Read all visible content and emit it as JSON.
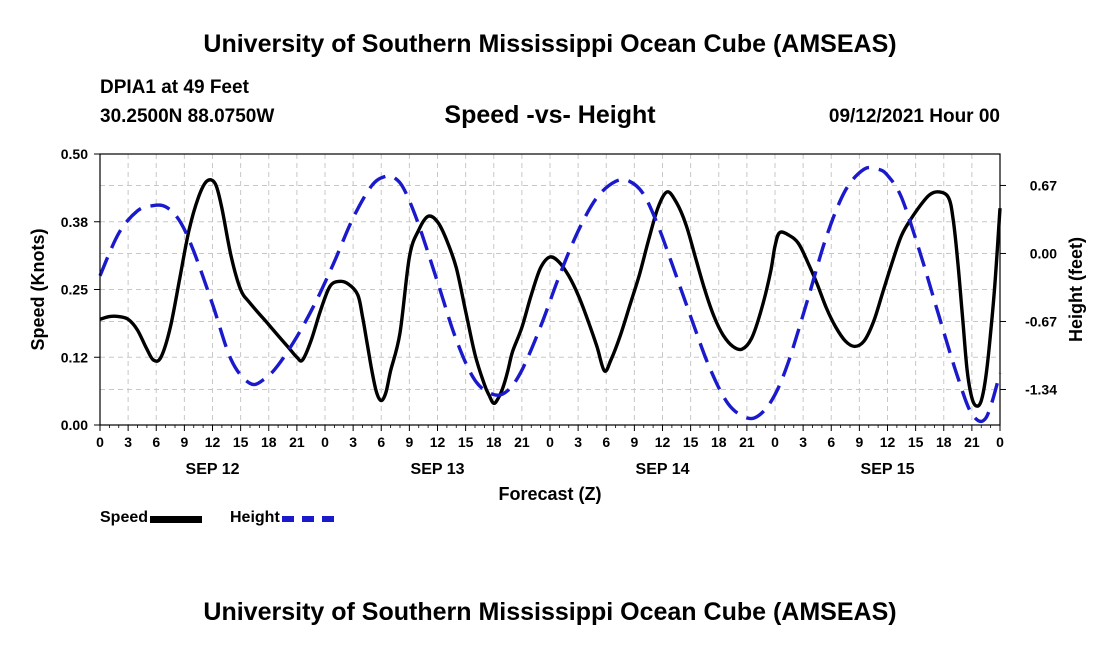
{
  "header": {
    "title": "University of Southern Mississippi Ocean Cube (AMSEAS)",
    "station": "DPIA1 at 49 Feet",
    "coords": "30.2500N  88.0750W",
    "chart_title": "Speed -vs- Height",
    "datetime": "09/12/2021 Hour 00"
  },
  "footer": {
    "title": "University of Southern Mississippi Ocean Cube (AMSEAS)"
  },
  "legend": {
    "speed_label": "Speed",
    "height_label": "Height"
  },
  "colors": {
    "speed": "#000000",
    "height": "#1a1acc",
    "grid": "#c8c8c8"
  },
  "chart_data": {
    "type": "line",
    "title": "Speed -vs- Height",
    "xlabel": "Forecast (Z)",
    "ylabel": "Speed (Knots)",
    "ylabel_right": "Height (feet)",
    "xlim": [
      0,
      96
    ],
    "ylim": [
      0,
      0.5
    ],
    "ylim_right": [
      -1.69,
      0.98
    ],
    "grid": true,
    "x_ticks": [
      0,
      3,
      6,
      9,
      12,
      15,
      18,
      21,
      24,
      27,
      30,
      33,
      36,
      39,
      42,
      45,
      48,
      51,
      54,
      57,
      60,
      63,
      66,
      69,
      72,
      75,
      78,
      81,
      84,
      87,
      90,
      93,
      96
    ],
    "x_tick_labels": [
      "0",
      "3",
      "6",
      "9",
      "12",
      "15",
      "18",
      "21",
      "0",
      "3",
      "6",
      "9",
      "12",
      "15",
      "18",
      "21",
      "0",
      "3",
      "6",
      "9",
      "12",
      "15",
      "18",
      "21",
      "0",
      "3",
      "6",
      "9",
      "12",
      "15",
      "18",
      "21",
      "0"
    ],
    "day_labels": [
      {
        "hour": 12,
        "label": "SEP 12"
      },
      {
        "hour": 36,
        "label": "SEP 13"
      },
      {
        "hour": 60,
        "label": "SEP 14"
      },
      {
        "hour": 84,
        "label": "SEP 15"
      }
    ],
    "y_ticks": [
      0,
      0.125,
      0.25,
      0.375,
      0.5
    ],
    "y_tick_labels": [
      "0.00",
      "0.12",
      "0.25",
      "0.38",
      "0.50"
    ],
    "y_right_ticks": [
      -1.34,
      -0.67,
      0.0,
      0.67
    ],
    "y_right_tick_labels": [
      "-1.34",
      "-0.67",
      "0.00",
      "0.67"
    ],
    "series": [
      {
        "name": "Speed",
        "axis": "left",
        "x": [
          0,
          1,
          2,
          3,
          4,
          5,
          5.7,
          6.5,
          7.5,
          8.5,
          9.5,
          10.5,
          11.4,
          12.3,
          13,
          14,
          15,
          16,
          18,
          20,
          21,
          21.6,
          22.5,
          23.5,
          24.5,
          25.5,
          26.5,
          27.5,
          28,
          28.5,
          29,
          29.5,
          30,
          30.5,
          31,
          32,
          33,
          34,
          35,
          36,
          37,
          38,
          39,
          40,
          41,
          41.5,
          42,
          42.5,
          43,
          43.5,
          44,
          45,
          46,
          47,
          48,
          49,
          50,
          51,
          52,
          53,
          53.8,
          54.5,
          55.5,
          56.5,
          57.5,
          58.5,
          59.5,
          60.5,
          61.5,
          62.5,
          63.5,
          64.5,
          65.5,
          66.5,
          67.5,
          68.5,
          69.5,
          70.5,
          71.5,
          72,
          72.5,
          73.5,
          74.5,
          75.5,
          76.5,
          77.5,
          78.5,
          79.5,
          80.5,
          81.5,
          82.5,
          83.5,
          84.5,
          85.5,
          86.5,
          87.5,
          88.5,
          89.5,
          90.5,
          91,
          91.5,
          92,
          92.5,
          93,
          93.5,
          94,
          94.5,
          95,
          95.5,
          96
        ],
        "values": [
          0.195,
          0.2,
          0.2,
          0.195,
          0.175,
          0.14,
          0.12,
          0.125,
          0.18,
          0.27,
          0.36,
          0.42,
          0.45,
          0.445,
          0.4,
          0.31,
          0.25,
          0.225,
          0.185,
          0.145,
          0.125,
          0.12,
          0.155,
          0.21,
          0.255,
          0.265,
          0.26,
          0.24,
          0.2,
          0.15,
          0.1,
          0.06,
          0.045,
          0.06,
          0.1,
          0.17,
          0.31,
          0.36,
          0.385,
          0.375,
          0.34,
          0.29,
          0.21,
          0.13,
          0.075,
          0.055,
          0.04,
          0.05,
          0.07,
          0.1,
          0.135,
          0.18,
          0.24,
          0.29,
          0.31,
          0.3,
          0.275,
          0.24,
          0.195,
          0.145,
          0.1,
          0.12,
          0.165,
          0.22,
          0.275,
          0.34,
          0.4,
          0.43,
          0.41,
          0.37,
          0.31,
          0.25,
          0.2,
          0.165,
          0.145,
          0.14,
          0.16,
          0.21,
          0.28,
          0.33,
          0.355,
          0.35,
          0.335,
          0.3,
          0.26,
          0.215,
          0.18,
          0.155,
          0.145,
          0.155,
          0.19,
          0.245,
          0.3,
          0.35,
          0.38,
          0.405,
          0.425,
          0.43,
          0.42,
          0.38,
          0.3,
          0.2,
          0.1,
          0.05,
          0.035,
          0.045,
          0.09,
          0.17,
          0.27,
          0.4
        ]
      },
      {
        "name": "Height",
        "axis": "right",
        "x": [
          0,
          2,
          4,
          5.5,
          7,
          8.5,
          10,
          12,
          14,
          16,
          17.5,
          19,
          21,
          23,
          25,
          27,
          29,
          30.5,
          31.5,
          32.5,
          34,
          36,
          38,
          40,
          42,
          43.5,
          45,
          47,
          49,
          51,
          53,
          55,
          56.5,
          58,
          59.5,
          61,
          63,
          65,
          67,
          69,
          70.5,
          72,
          73.5,
          75.5,
          77.5,
          79.5,
          81.5,
          83,
          84,
          85.5,
          87.5,
          89.5,
          91.5,
          93,
          94.5,
          96
        ],
        "values": [
          -0.22,
          0.2,
          0.42,
          0.47,
          0.46,
          0.32,
          0.02,
          -0.5,
          -1.05,
          -1.28,
          -1.24,
          -1.1,
          -0.82,
          -0.48,
          -0.08,
          0.35,
          0.67,
          0.76,
          0.74,
          0.62,
          0.28,
          -0.28,
          -0.85,
          -1.25,
          -1.39,
          -1.35,
          -1.15,
          -0.72,
          -0.22,
          0.22,
          0.55,
          0.71,
          0.71,
          0.58,
          0.28,
          -0.1,
          -0.62,
          -1.12,
          -1.48,
          -1.62,
          -1.58,
          -1.39,
          -1.05,
          -0.45,
          0.17,
          0.62,
          0.83,
          0.83,
          0.77,
          0.55,
          0.0,
          -0.62,
          -1.22,
          -1.58,
          -1.62,
          -1.18
        ]
      }
    ]
  }
}
